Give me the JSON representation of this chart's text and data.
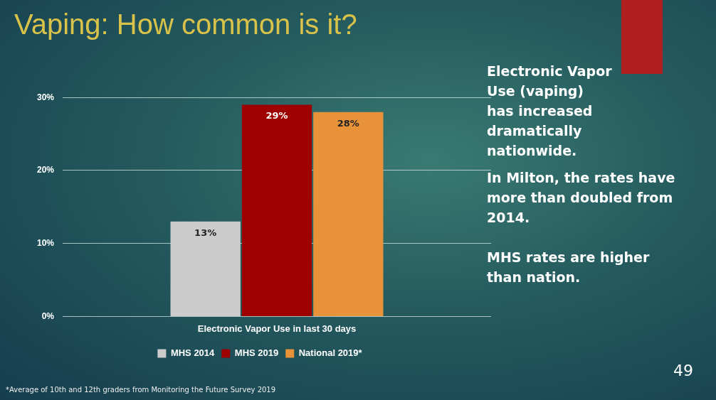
{
  "chart_data": {
    "type": "bar",
    "title": "Vaping: How common is it?",
    "categories": [
      "Electronic Vapor Use in last 30 days"
    ],
    "series": [
      {
        "name": "MHS 2014",
        "color": "#cccccc",
        "values": [
          13
        ],
        "value_labels": [
          "13%"
        ]
      },
      {
        "name": "MHS 2019",
        "color": "#9e0000",
        "values": [
          29
        ],
        "value_labels": [
          "29%"
        ]
      },
      {
        "name": "National 2019*",
        "color": "#e8923a",
        "values": [
          28
        ],
        "value_labels": [
          "28%"
        ]
      }
    ],
    "ylim": [
      0,
      30
    ],
    "yticks": [
      {
        "value": 0,
        "label": "0%"
      },
      {
        "value": 10,
        "label": "10%"
      },
      {
        "value": 20,
        "label": "20%"
      },
      {
        "value": 30,
        "label": "30%"
      }
    ],
    "grid": "y",
    "legend": "bottom",
    "annotations": [
      "Electronic Vapor Use (vaping) has increased dramatically nationwide.",
      "In Milton, the rates have more than doubled from 2014.",
      "MHS rates are higher than nation.",
      "*Average of 10th and 12th graders from Monitoring the Future Survey 2019",
      "49"
    ]
  }
}
